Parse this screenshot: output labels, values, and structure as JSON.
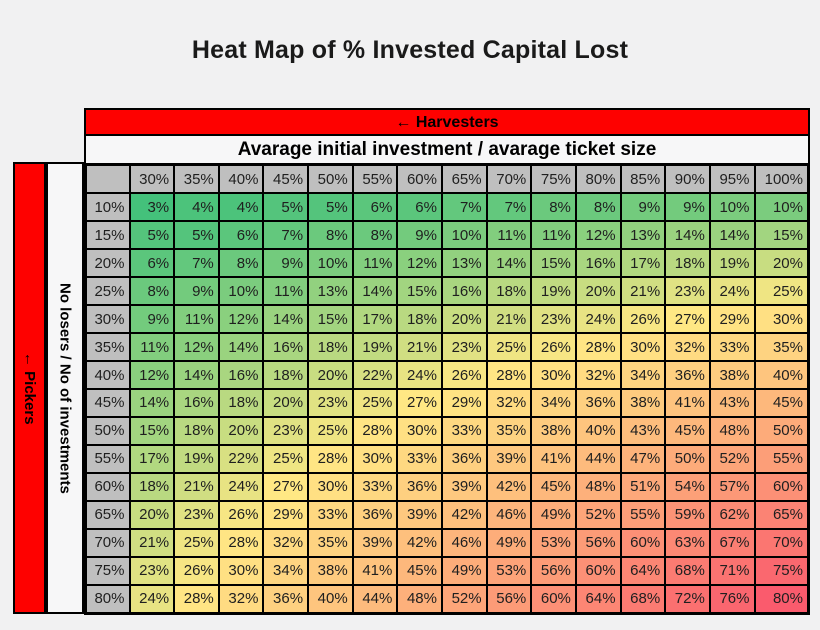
{
  "title": "Heat Map of % Invested Capital Lost",
  "banners": {
    "harvesters_label": "← Harvesters",
    "column_axis_label": "Avarage initial investment / avarage ticket size",
    "pickers_label": "← Pickers",
    "row_axis_label": "No losers / No of investments"
  },
  "chart_data": {
    "type": "heatmap",
    "title": "Heat Map of % Invested Capital Lost",
    "x_group_label": "← Harvesters",
    "xlabel": "Avarage initial investment / avarage ticket size",
    "y_group_label": "← Pickers",
    "ylabel": "No losers / No of investments",
    "columns": [
      "30%",
      "35%",
      "40%",
      "45%",
      "50%",
      "55%",
      "60%",
      "65%",
      "70%",
      "75%",
      "80%",
      "85%",
      "90%",
      "95%",
      "100%"
    ],
    "rows": [
      "10%",
      "15%",
      "20%",
      "25%",
      "30%",
      "35%",
      "40%",
      "45%",
      "50%",
      "55%",
      "60%",
      "65%",
      "70%",
      "75%",
      "80%"
    ],
    "value_suffix": "%",
    "values": [
      [
        3,
        4,
        4,
        5,
        5,
        6,
        6,
        7,
        7,
        8,
        8,
        9,
        9,
        10,
        10
      ],
      [
        5,
        5,
        6,
        7,
        8,
        8,
        9,
        10,
        11,
        11,
        12,
        13,
        14,
        14,
        15
      ],
      [
        6,
        7,
        8,
        9,
        10,
        11,
        12,
        13,
        14,
        15,
        16,
        17,
        18,
        19,
        20
      ],
      [
        8,
        9,
        10,
        11,
        13,
        14,
        15,
        16,
        18,
        19,
        20,
        21,
        23,
        24,
        25
      ],
      [
        9,
        11,
        12,
        14,
        15,
        17,
        18,
        20,
        21,
        23,
        24,
        26,
        27,
        29,
        30
      ],
      [
        11,
        12,
        14,
        16,
        18,
        19,
        21,
        23,
        25,
        26,
        28,
        30,
        32,
        33,
        35
      ],
      [
        12,
        14,
        16,
        18,
        20,
        22,
        24,
        26,
        28,
        30,
        32,
        34,
        36,
        38,
        40
      ],
      [
        14,
        16,
        18,
        20,
        23,
        25,
        27,
        29,
        32,
        34,
        36,
        38,
        41,
        43,
        45
      ],
      [
        15,
        18,
        20,
        23,
        25,
        28,
        30,
        33,
        35,
        38,
        40,
        43,
        45,
        48,
        50
      ],
      [
        17,
        19,
        22,
        25,
        28,
        30,
        33,
        36,
        39,
        41,
        44,
        47,
        50,
        52,
        55
      ],
      [
        18,
        21,
        24,
        27,
        30,
        33,
        36,
        39,
        42,
        45,
        48,
        51,
        54,
        57,
        60
      ],
      [
        20,
        23,
        26,
        29,
        33,
        36,
        39,
        42,
        46,
        49,
        52,
        55,
        59,
        62,
        65
      ],
      [
        21,
        25,
        28,
        32,
        35,
        39,
        42,
        46,
        49,
        53,
        56,
        60,
        63,
        67,
        70
      ],
      [
        23,
        26,
        30,
        34,
        38,
        41,
        45,
        49,
        53,
        56,
        60,
        64,
        68,
        71,
        75
      ],
      [
        24,
        28,
        32,
        36,
        40,
        44,
        48,
        52,
        56,
        60,
        64,
        68,
        72,
        76,
        80
      ]
    ],
    "color_scale": {
      "min": {
        "value": 3,
        "color": "#44C17B"
      },
      "mid": {
        "value": 27,
        "color": "#FFE884"
      },
      "max": {
        "value": 80,
        "color": "#FA5B6D"
      }
    },
    "colors": {
      "header_bg": "#BFBFBF",
      "banner_red": "#FE0100",
      "banner_white_bg": "#F7F7F8",
      "grid_line": "#000000",
      "page_bg": "#F1F1F2"
    },
    "grid": true,
    "legend": false
  }
}
